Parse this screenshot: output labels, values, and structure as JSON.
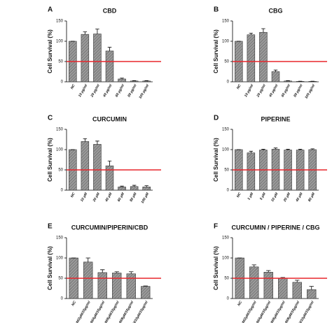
{
  "chart_data": [
    {
      "type": "bar",
      "panel": "A",
      "title": "CBD",
      "y_label": "Cell Survival (%)",
      "categories": [
        "NC",
        "10 µg/ml",
        "20 µg/ml",
        "40 µg/ml",
        "60 µg/ml",
        "80 µg/ml",
        "100 µg/ml"
      ],
      "values": [
        100,
        117,
        118,
        76,
        7,
        2,
        2
      ],
      "errors": [
        0,
        6,
        12,
        9,
        2,
        1,
        1
      ],
      "ylim": [
        0,
        150
      ],
      "yticks": [
        0,
        50,
        100,
        150
      ],
      "reference_line": 50,
      "color": "#8c8c8c",
      "line_color": "#e8262c"
    },
    {
      "type": "bar",
      "panel": "B",
      "title": "CBG",
      "y_label": "Cell Survival (%)",
      "categories": [
        "NC",
        "10 µg/ml",
        "20 µg/ml",
        "40 µg/ml",
        "60 µg/ml",
        "80 µg/ml",
        "100 µg/ml"
      ],
      "values": [
        100,
        116,
        122,
        25,
        2,
        1,
        1
      ],
      "errors": [
        0,
        4,
        9,
        4,
        1,
        0.5,
        0.5
      ],
      "ylim": [
        0,
        150
      ],
      "yticks": [
        0,
        50,
        100,
        150
      ],
      "reference_line": 50,
      "color": "#8c8c8c",
      "line_color": "#e8262c"
    },
    {
      "type": "bar",
      "panel": "C",
      "title": "CURCUMIN",
      "y_label": "Cell Survival (%)",
      "categories": [
        "NC",
        "10 µM",
        "20 µM",
        "40 µM",
        "60 µM",
        "80 µM",
        "100 µM"
      ],
      "values": [
        100,
        120,
        113,
        60,
        8,
        9,
        8
      ],
      "errors": [
        0,
        7,
        8,
        12,
        2,
        3,
        3
      ],
      "ylim": [
        0,
        150
      ],
      "yticks": [
        0,
        50,
        100,
        150
      ],
      "reference_line": 50,
      "color": "#8c8c8c",
      "line_color": "#e8262c"
    },
    {
      "type": "bar",
      "panel": "D",
      "title": "PIPERINE",
      "y_label": "Cell Survival (%)",
      "categories": [
        "NC",
        "1 µM",
        "5 µM",
        "10 µM",
        "20 µM",
        "40 µM",
        "80 µM"
      ],
      "values": [
        100,
        92,
        99,
        101,
        99,
        99,
        100
      ],
      "errors": [
        0,
        4,
        2,
        3,
        2,
        2,
        2
      ],
      "ylim": [
        0,
        150
      ],
      "yticks": [
        0,
        50,
        100,
        150
      ],
      "reference_line": 50,
      "color": "#8c8c8c",
      "line_color": "#e8262c"
    },
    {
      "type": "bar",
      "panel": "E",
      "title": "CURCUMIN/PIPERIN/CBD",
      "y_label": "Cell Survival (%)",
      "categories": [
        "NC",
        "10µM/2µM/15µg/ml",
        "20µM/4µM/15µg/ml",
        "30µM/6µM/15µg/ml",
        "40µM/8µM/15µg/ml",
        "60µM/10µM/15µg/ml"
      ],
      "values": [
        100,
        90,
        64,
        63,
        61,
        30
      ],
      "errors": [
        0,
        10,
        7,
        3,
        5,
        1
      ],
      "ylim": [
        0,
        150
      ],
      "yticks": [
        0,
        50,
        100,
        150
      ],
      "reference_line": 50,
      "color": "#8c8c8c",
      "line_color": "#e8262c"
    },
    {
      "type": "bar",
      "panel": "F",
      "title": "CURCUMIN / PIPERINE / CBG",
      "y_label": "Cell Survival (%)",
      "categories": [
        "NC",
        "10µM/2µM/15µg/ml",
        "20µM/4µM/15µg/ml",
        "30µM/6µM/15µg/ml",
        "40µM/8µM/15µg/ml",
        "60µM/10µM/15µg/ml"
      ],
      "values": [
        100,
        78,
        65,
        50,
        40,
        22
      ],
      "errors": [
        0,
        5,
        4,
        2,
        5,
        8
      ],
      "ylim": [
        0,
        150
      ],
      "yticks": [
        0,
        50,
        100,
        150
      ],
      "reference_line": 50,
      "color": "#8c8c8c",
      "line_color": "#e8262c"
    }
  ]
}
